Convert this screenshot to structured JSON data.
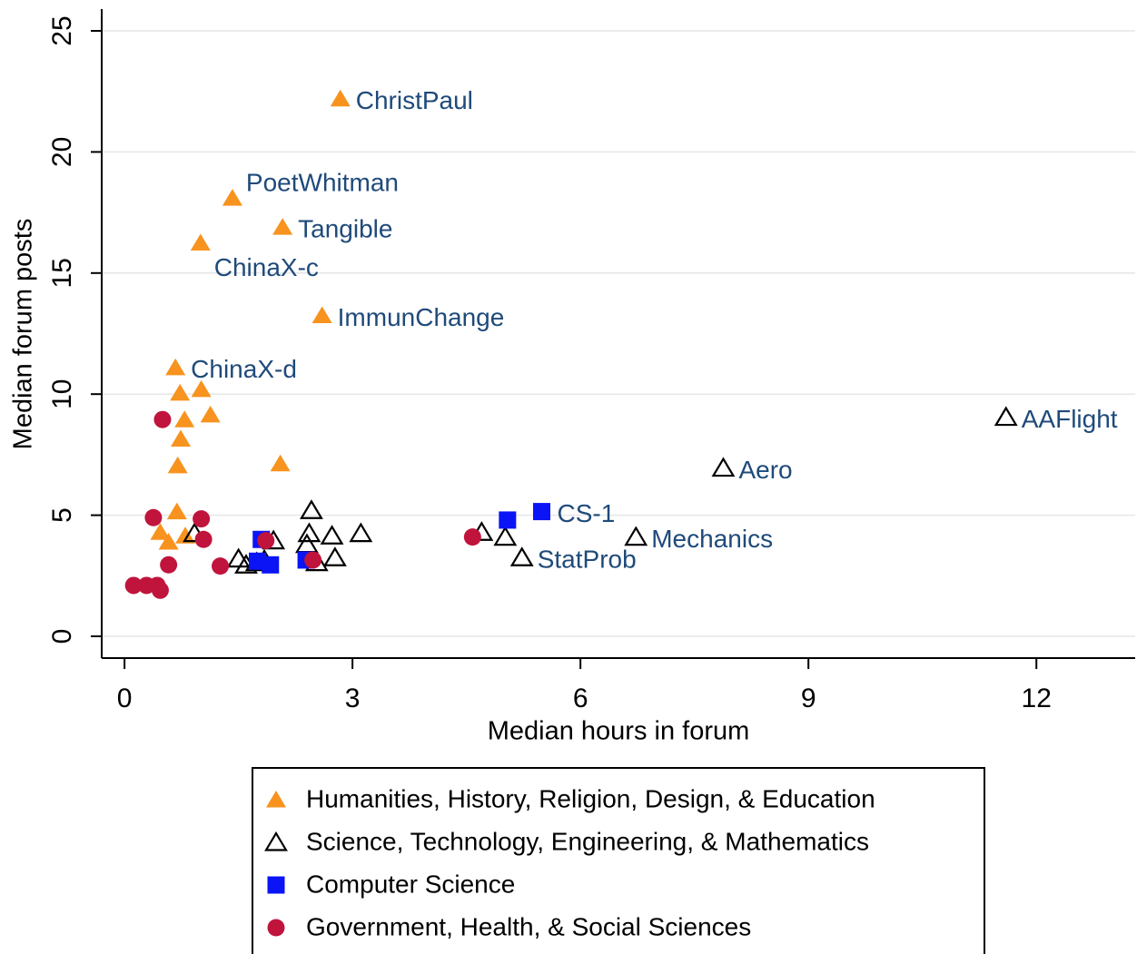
{
  "chart_data": {
    "type": "scatter",
    "x_label": "Median hours in forum",
    "y_label": "Median forum posts",
    "xlim": [
      -0.3,
      13.3
    ],
    "ylim": [
      -0.9,
      25.9
    ],
    "xticks": [
      0,
      3,
      6,
      9,
      12
    ],
    "yticks": [
      0,
      5,
      10,
      15,
      20,
      25
    ],
    "grid": true,
    "legend": "bottom",
    "series": [
      {
        "name": "Humanities, History, Religion, Design, & Education",
        "color": "#f7931e",
        "marker": "triangle",
        "x": [
          2.84,
          1.42,
          2.08,
          1.0,
          2.6,
          0.67,
          0.73,
          1.01,
          1.13,
          0.79,
          0.74,
          0.7,
          2.05,
          0.69,
          0.47,
          0.58,
          0.8
        ],
        "values": [
          22.2,
          18.1,
          16.9,
          16.25,
          13.25,
          11.1,
          10.05,
          10.2,
          9.15,
          8.95,
          8.15,
          7.05,
          7.13,
          5.15,
          4.3,
          3.9,
          4.15
        ],
        "labels": [
          "ChristPaul",
          "PoetWhitman",
          "Tangible",
          "ChinaX-c",
          "ImmunChange",
          "ChinaX-d",
          null,
          null,
          null,
          null,
          null,
          null,
          null,
          null,
          null,
          null,
          null
        ]
      },
      {
        "name": "Science, Technology, Engineering, & Mathematics",
        "color": "#000000",
        "marker": "triangle-open",
        "x": [
          11.6,
          7.88,
          6.73,
          5.23,
          5.01,
          4.7,
          2.46,
          2.43,
          2.73,
          3.11,
          2.4,
          2.77,
          2.53,
          0.92,
          1.5,
          1.96,
          1.84,
          1.6,
          1.74
        ],
        "values": [
          9.05,
          6.95,
          4.1,
          3.25,
          4.1,
          4.3,
          5.2,
          4.25,
          4.15,
          4.25,
          3.8,
          3.25,
          3.05,
          4.25,
          3.2,
          3.95,
          3.15,
          2.95,
          3.05
        ],
        "labels": [
          "AAFlight",
          "Aero",
          "Mechanics",
          "StatProb",
          null,
          null,
          null,
          null,
          null,
          null,
          null,
          null,
          null,
          null,
          null,
          null,
          null,
          null,
          null
        ]
      },
      {
        "name": "Computer Science",
        "color": "#0a14f5",
        "marker": "square",
        "x": [
          5.49,
          5.04,
          1.8,
          1.75,
          1.92,
          2.39
        ],
        "values": [
          5.15,
          4.8,
          4.0,
          3.1,
          2.95,
          3.15
        ],
        "labels": [
          "CS-1",
          null,
          null,
          null,
          null,
          null
        ]
      },
      {
        "name": "Government, Health, & Social Sciences",
        "color": "#c0143c",
        "marker": "circle",
        "x": [
          0.5,
          0.38,
          1.01,
          1.04,
          0.58,
          0.12,
          0.29,
          0.43,
          0.47,
          1.26,
          1.86,
          2.48,
          4.58
        ],
        "values": [
          8.95,
          4.9,
          4.85,
          4.0,
          2.95,
          2.1,
          2.1,
          2.1,
          1.9,
          2.9,
          3.95,
          3.15,
          4.1
        ],
        "labels": [
          null,
          null,
          null,
          null,
          null,
          null,
          null,
          null,
          null,
          null,
          null,
          null,
          null
        ]
      }
    ]
  }
}
